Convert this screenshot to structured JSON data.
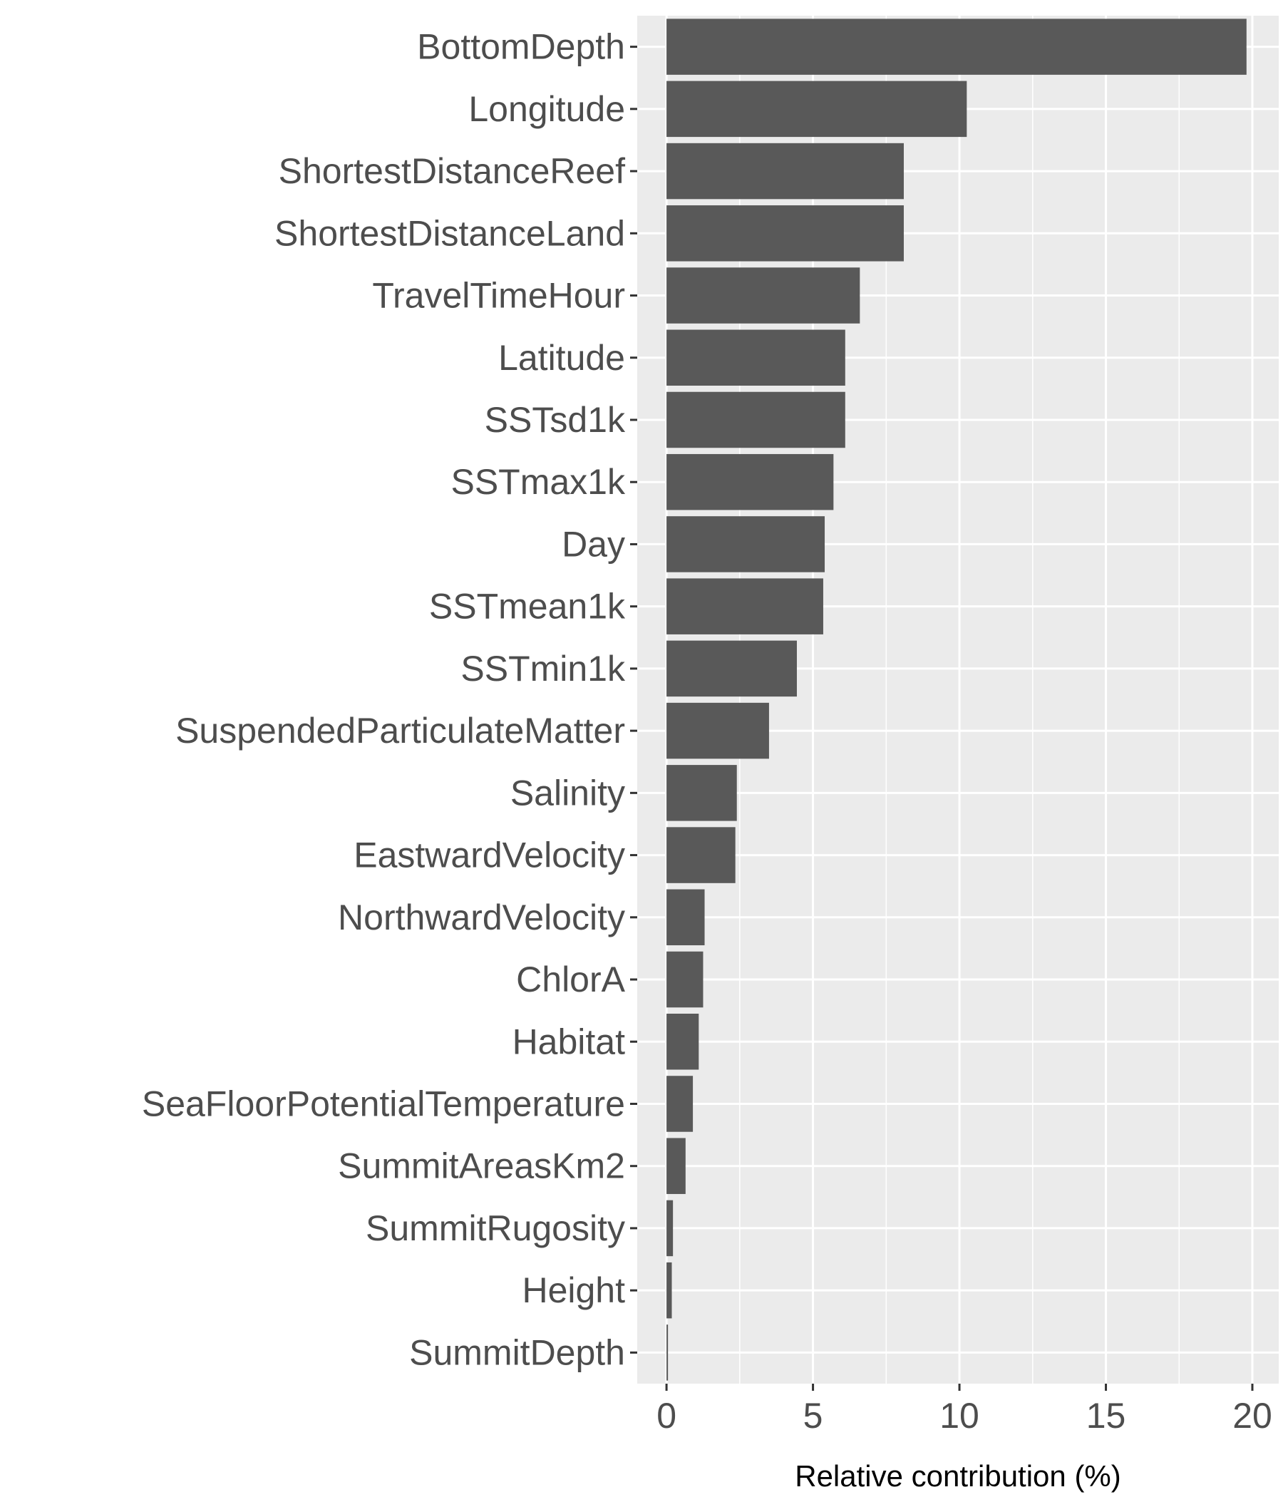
{
  "chart_data": {
    "type": "bar",
    "orientation": "horizontal",
    "categories": [
      "BottomDepth",
      "Longitude",
      "ShortestDistanceReef",
      "ShortestDistanceLand",
      "TravelTimeHour",
      "Latitude",
      "SSTsd1k",
      "SSTmax1k",
      "Day",
      "SSTmean1k",
      "SSTmin1k",
      "SuspendedParticulateMatter",
      "Salinity",
      "EastwardVelocity",
      "NorthwardVelocity",
      "ChlorA",
      "Habitat",
      "SeaFloorPotentialTemperature",
      "SummitAreasKm2",
      "SummitRugosity",
      "Height",
      "SummitDepth"
    ],
    "values": [
      19.8,
      10.25,
      8.1,
      8.1,
      6.6,
      6.1,
      6.1,
      5.7,
      5.4,
      5.35,
      4.45,
      3.5,
      2.4,
      2.35,
      1.3,
      1.25,
      1.1,
      0.9,
      0.65,
      0.22,
      0.18,
      0.05
    ],
    "title": "",
    "xlabel": "Relative contribution (%)",
    "ylabel": "",
    "xlim": [
      -1,
      20.9
    ],
    "xticks": [
      0,
      5,
      10,
      15,
      20
    ],
    "xtick_labels": [
      "0",
      "5",
      "10",
      "15",
      "20"
    ],
    "grid": true,
    "legend": "none",
    "colors": {
      "bar": "#595959",
      "panel_background": "#ebebeb",
      "grid": "#ffffff",
      "tick_label": "#4d4d4d",
      "tick": "#333333",
      "axis_title": "#000000"
    }
  }
}
